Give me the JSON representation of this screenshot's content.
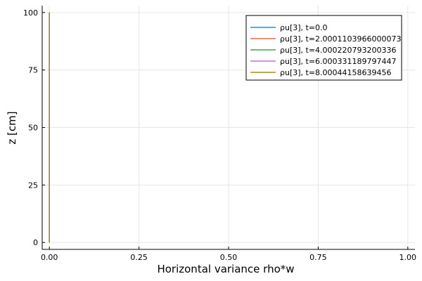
{
  "chart_data": {
    "type": "line",
    "title": "",
    "xlabel": "Horizontal variance rho*w",
    "ylabel": "z [cm]",
    "xlim": [
      -0.02,
      1.02
    ],
    "ylim": [
      -3,
      103
    ],
    "xticks": [
      0.0,
      0.25,
      0.5,
      0.75,
      1.0
    ],
    "xtick_labels": [
      "0.00",
      "0.25",
      "0.50",
      "0.75",
      "1.00"
    ],
    "yticks": [
      0,
      25,
      50,
      75,
      100
    ],
    "ytick_labels": [
      "0",
      "25",
      "50",
      "75",
      "100"
    ],
    "grid": true,
    "legend_position": "top-right",
    "series": [
      {
        "name": "ρu[3], t=0.0",
        "color": "#009AFA",
        "x": [
          0.0,
          0.0
        ],
        "y": [
          0,
          100
        ]
      },
      {
        "name": "ρu[3], t=2.0001103966000073",
        "color": "#E36F47",
        "x": [
          0.0,
          0.0
        ],
        "y": [
          0,
          100
        ]
      },
      {
        "name": "ρu[3], t=4.000220793200336",
        "color": "#3EA44E",
        "x": [
          0.0,
          0.0
        ],
        "y": [
          0,
          100
        ]
      },
      {
        "name": "ρu[3], t=6.000331189797447",
        "color": "#C371D2",
        "x": [
          0.0,
          0.0
        ],
        "y": [
          0,
          100
        ]
      },
      {
        "name": "ρu[3], t=8.00044158639456",
        "color": "#AC8E18",
        "x": [
          0.0,
          0.0
        ],
        "y": [
          0,
          100
        ]
      }
    ]
  }
}
